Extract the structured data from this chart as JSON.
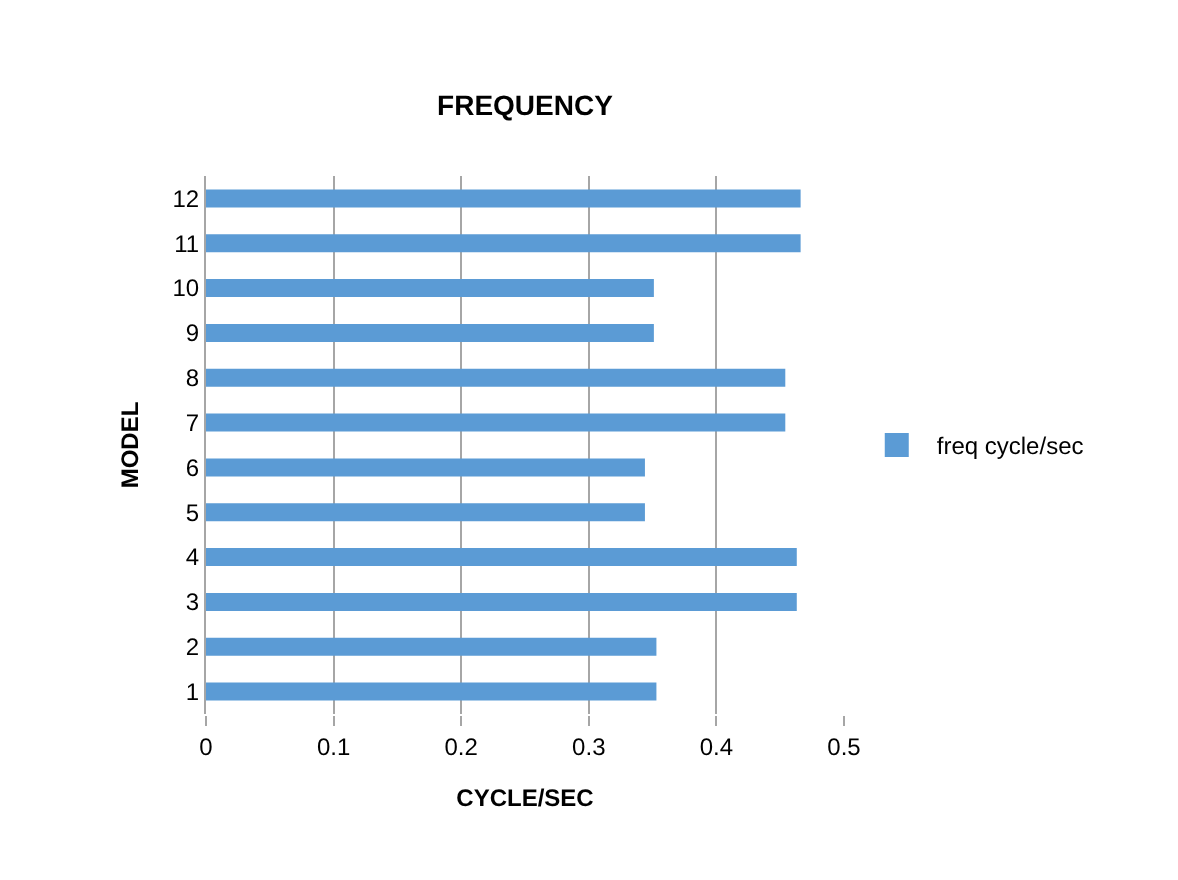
{
  "chart_data": {
    "type": "bar",
    "orientation": "horizontal",
    "title": "FREQUENCY",
    "xlabel": "CYCLE/SEC",
    "ylabel": "MODEL",
    "categories": [
      "12",
      "11",
      "10",
      "9",
      "8",
      "7",
      "6",
      "5",
      "4",
      "3",
      "2",
      "1"
    ],
    "series": [
      {
        "name": "freq cycle/sec",
        "color": "#5b9bd5",
        "values": [
          0.466,
          0.466,
          0.351,
          0.351,
          0.454,
          0.454,
          0.344,
          0.344,
          0.463,
          0.463,
          0.353,
          0.353
        ]
      }
    ],
    "xlim": [
      0,
      0.5
    ],
    "xticks": [
      0,
      0.1,
      0.2,
      0.3,
      0.4,
      0.5
    ],
    "grid": "x",
    "legend": "right"
  }
}
